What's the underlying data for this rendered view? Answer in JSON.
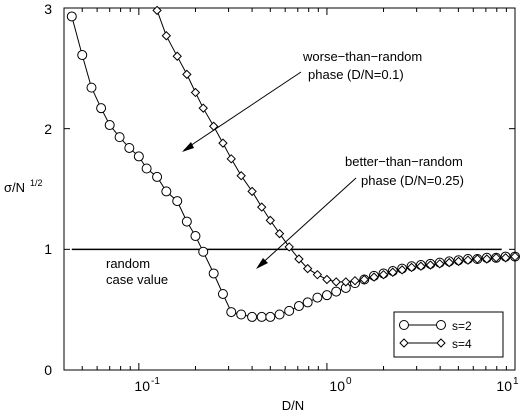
{
  "chart_data": {
    "type": "line",
    "xlabel": "D/N",
    "ylabel_main": "σ/N",
    "ylabel_sup": "1/2",
    "xscale": "log",
    "xlim": [
      0.04,
      10
    ],
    "ylim": [
      0,
      3
    ],
    "grid": false,
    "y_ticks": [
      0,
      1,
      2,
      3
    ],
    "y_tick_labels": [
      "0",
      "1",
      "2",
      "3"
    ],
    "x_major_ticks": [
      0.1,
      1,
      10
    ],
    "x_tick_base": "10",
    "x_tick_exps": [
      "-1",
      "0",
      "1"
    ],
    "reference_line": {
      "y": 1.0,
      "x_range": [
        0.044,
        8.5
      ],
      "label_lines": [
        "random",
        "case value"
      ]
    },
    "annotations": [
      {
        "lines": [
          "worse−than−random",
          "phase   (D/N=0.1)"
        ]
      },
      {
        "lines": [
          "better−than−random",
          "phase   (D/N=0.25)"
        ]
      }
    ],
    "legend_position": "lower-right",
    "series": [
      {
        "name": "s=2",
        "marker": "circle",
        "x": [
          0.044,
          0.05,
          0.056,
          0.063,
          0.07,
          0.079,
          0.089,
          0.1,
          0.11,
          0.125,
          0.14,
          0.16,
          0.18,
          0.2,
          0.22,
          0.25,
          0.28,
          0.31,
          0.35,
          0.4,
          0.45,
          0.5,
          0.56,
          0.63,
          0.71,
          0.79,
          0.89,
          1.0,
          1.12,
          1.26,
          1.41,
          1.58,
          1.78,
          2.0,
          2.24,
          2.51,
          2.82,
          3.16,
          3.55,
          3.98,
          4.47,
          5.01,
          5.62,
          6.31,
          7.08,
          7.94,
          8.91,
          10.0
        ],
        "y": [
          2.93,
          2.61,
          2.34,
          2.17,
          2.03,
          1.93,
          1.84,
          1.77,
          1.67,
          1.6,
          1.48,
          1.4,
          1.23,
          1.11,
          0.98,
          0.8,
          0.63,
          0.48,
          0.46,
          0.44,
          0.44,
          0.44,
          0.46,
          0.49,
          0.53,
          0.56,
          0.6,
          0.62,
          0.65,
          0.68,
          0.72,
          0.75,
          0.78,
          0.8,
          0.82,
          0.84,
          0.86,
          0.87,
          0.88,
          0.89,
          0.9,
          0.91,
          0.92,
          0.92,
          0.93,
          0.93,
          0.94,
          0.94
        ]
      },
      {
        "name": "s=4",
        "marker": "diamond",
        "x": [
          0.125,
          0.14,
          0.16,
          0.18,
          0.2,
          0.22,
          0.25,
          0.28,
          0.31,
          0.35,
          0.4,
          0.45,
          0.5,
          0.56,
          0.63,
          0.71,
          0.79,
          0.89,
          1.0,
          1.12,
          1.26,
          1.41,
          1.58,
          1.78,
          2.0,
          2.24,
          2.51,
          2.82,
          3.16,
          3.55,
          3.98,
          4.47,
          5.01,
          5.62,
          6.31,
          7.08,
          7.94,
          8.91,
          10.0
        ],
        "y": [
          2.98,
          2.77,
          2.6,
          2.45,
          2.3,
          2.17,
          2.02,
          1.88,
          1.75,
          1.61,
          1.48,
          1.35,
          1.24,
          1.13,
          1.02,
          0.92,
          0.84,
          0.79,
          0.75,
          0.73,
          0.73,
          0.74,
          0.75,
          0.77,
          0.79,
          0.81,
          0.83,
          0.85,
          0.86,
          0.87,
          0.88,
          0.89,
          0.9,
          0.91,
          0.92,
          0.92,
          0.93,
          0.93,
          0.94
        ]
      }
    ]
  }
}
